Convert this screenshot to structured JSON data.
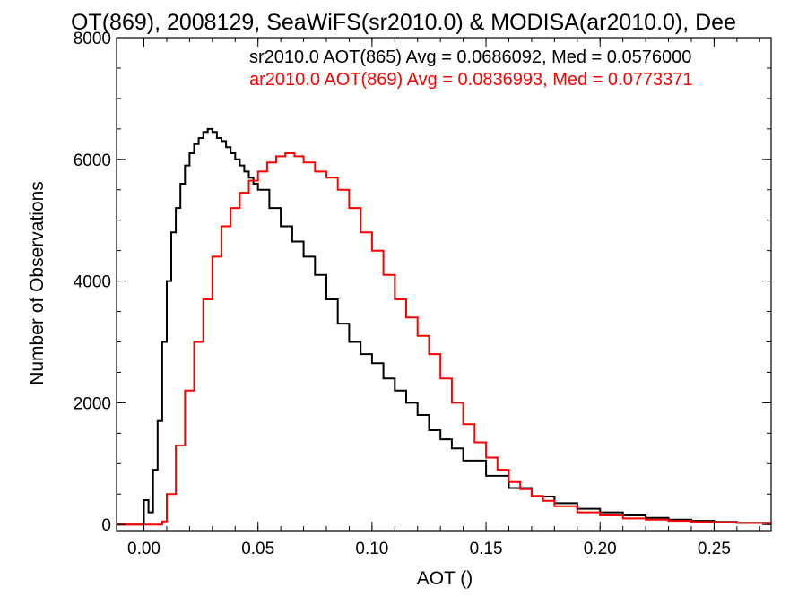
{
  "chart_data": {
    "type": "line",
    "title": "OT(869), 2008129, SeaWiFS(sr2010.0) & MODISA(ar2010.0), Dee",
    "xlabel": "AOT ()",
    "ylabel": "Number of Observations",
    "xlim": [
      -0.012,
      0.275
    ],
    "ylim": [
      -100,
      8000
    ],
    "xticks": [
      0.0,
      0.05,
      0.1,
      0.15,
      0.2,
      0.25
    ],
    "xtick_labels": [
      "0.00",
      "0.05",
      "0.10",
      "0.15",
      "0.20",
      "0.25"
    ],
    "yticks": [
      0,
      2000,
      4000,
      6000,
      8000
    ],
    "ytick_labels": [
      "0",
      "2000",
      "4000",
      "6000",
      "8000"
    ],
    "grid": false,
    "legend_placement": "top-right",
    "annotations": [
      {
        "text": "sr2010.0 AOT(865) Avg = 0.0686092, Med = 0.0576000",
        "color": "#000000"
      },
      {
        "text": "ar2010.0 AOT(869) Avg = 0.0836993, Med = 0.0773371",
        "color": "#ff0000"
      }
    ],
    "series": [
      {
        "color": "#000000",
        "x": [
          -0.012,
          -0.005,
          -0.001,
          0.0,
          0.002,
          0.004,
          0.006,
          0.008,
          0.01,
          0.012,
          0.014,
          0.016,
          0.018,
          0.02,
          0.022,
          0.024,
          0.026,
          0.028,
          0.03,
          0.032,
          0.034,
          0.036,
          0.038,
          0.04,
          0.042,
          0.044,
          0.046,
          0.048,
          0.05,
          0.055,
          0.06,
          0.065,
          0.07,
          0.075,
          0.08,
          0.085,
          0.09,
          0.095,
          0.1,
          0.105,
          0.11,
          0.115,
          0.12,
          0.125,
          0.13,
          0.135,
          0.14,
          0.15,
          0.16,
          0.17,
          0.18,
          0.19,
          0.2,
          0.21,
          0.22,
          0.23,
          0.24,
          0.25,
          0.26,
          0.275
        ],
        "values": [
          0,
          0,
          0,
          400,
          200,
          900,
          1700,
          3000,
          4000,
          4800,
          5200,
          5600,
          5900,
          6100,
          6250,
          6350,
          6450,
          6500,
          6450,
          6350,
          6300,
          6200,
          6100,
          6000,
          5900,
          5800,
          5700,
          5600,
          5500,
          5200,
          4900,
          4650,
          4400,
          4100,
          3700,
          3300,
          3000,
          2800,
          2650,
          2400,
          2200,
          2000,
          1800,
          1550,
          1400,
          1250,
          1050,
          800,
          600,
          460,
          350,
          260,
          200,
          150,
          110,
          80,
          60,
          45,
          30,
          15
        ]
      },
      {
        "color": "#ff0000",
        "x": [
          -0.012,
          0.0,
          0.005,
          0.008,
          0.01,
          0.014,
          0.018,
          0.022,
          0.026,
          0.03,
          0.034,
          0.038,
          0.042,
          0.046,
          0.05,
          0.054,
          0.058,
          0.062,
          0.066,
          0.07,
          0.075,
          0.08,
          0.085,
          0.09,
          0.095,
          0.1,
          0.105,
          0.11,
          0.115,
          0.12,
          0.125,
          0.13,
          0.135,
          0.14,
          0.145,
          0.15,
          0.155,
          0.16,
          0.165,
          0.17,
          0.175,
          0.18,
          0.19,
          0.2,
          0.21,
          0.22,
          0.23,
          0.24,
          0.25,
          0.26,
          0.275
        ],
        "values": [
          0,
          0,
          0,
          50,
          500,
          1300,
          2200,
          3000,
          3700,
          4400,
          4900,
          5200,
          5450,
          5650,
          5800,
          5950,
          6050,
          6100,
          6050,
          5950,
          5800,
          5700,
          5500,
          5200,
          4800,
          4500,
          4100,
          3700,
          3400,
          3100,
          2800,
          2400,
          2000,
          1650,
          1350,
          1100,
          900,
          700,
          580,
          470,
          390,
          300,
          200,
          150,
          100,
          80,
          60,
          45,
          35,
          25,
          10
        ]
      }
    ]
  }
}
